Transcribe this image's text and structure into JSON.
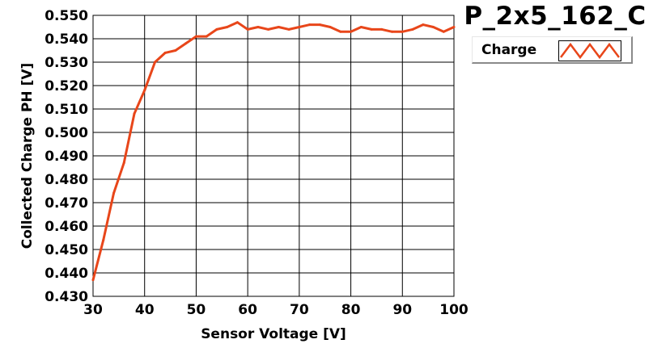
{
  "colors": {
    "series": "#e8461a",
    "grid": "#000000",
    "background": "#ffffff"
  },
  "chart_data": {
    "type": "line",
    "title": "P_2x5_162_C",
    "xlabel": "Sensor Voltage [V]",
    "ylabel": "Collected Charge PH [V]",
    "xlim": [
      30,
      100
    ],
    "ylim": [
      0.43,
      0.55
    ],
    "xticks": [
      "30",
      "40",
      "50",
      "60",
      "70",
      "80",
      "90",
      "100"
    ],
    "yticks": [
      "0.430",
      "0.440",
      "0.450",
      "0.460",
      "0.470",
      "0.480",
      "0.490",
      "0.500",
      "0.510",
      "0.520",
      "0.530",
      "0.540",
      "0.550"
    ],
    "grid": true,
    "legend_position": "top-right",
    "series": [
      {
        "name": "Charge",
        "x": [
          30,
          32,
          34,
          36,
          38,
          40,
          42,
          44,
          46,
          48,
          50,
          52,
          54,
          56,
          58,
          60,
          62,
          64,
          66,
          68,
          70,
          72,
          74,
          76,
          78,
          80,
          82,
          84,
          86,
          88,
          90,
          92,
          94,
          96,
          98,
          100
        ],
        "y": [
          0.437,
          0.454,
          0.474,
          0.487,
          0.508,
          0.518,
          0.53,
          0.534,
          0.535,
          0.538,
          0.541,
          0.541,
          0.544,
          0.545,
          0.547,
          0.544,
          0.545,
          0.544,
          0.545,
          0.544,
          0.545,
          0.546,
          0.546,
          0.545,
          0.543,
          0.543,
          0.545,
          0.544,
          0.544,
          0.543,
          0.543,
          0.544,
          0.546,
          0.545,
          0.543,
          0.545
        ]
      }
    ]
  }
}
